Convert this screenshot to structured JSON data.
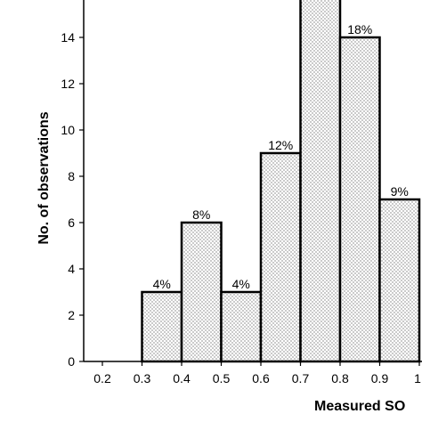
{
  "chart_data": {
    "type": "bar",
    "title": "",
    "xlabel": "Measured SO",
    "ylabel": "No. of observations",
    "x_ticks": [
      "0.2",
      "0.3",
      "0.4",
      "0.5",
      "0.6",
      "0.7",
      "0.8",
      "0.9",
      "1."
    ],
    "y_ticks": [
      0,
      2,
      4,
      6,
      8,
      10,
      12,
      14
    ],
    "ylim": [
      0,
      16
    ],
    "grid": false,
    "bars": [
      {
        "bin": [
          0.3,
          0.4
        ],
        "value": 3,
        "label": "4%"
      },
      {
        "bin": [
          0.4,
          0.5
        ],
        "value": 6,
        "label": "8%"
      },
      {
        "bin": [
          0.5,
          0.6
        ],
        "value": 3,
        "label": "4%"
      },
      {
        "bin": [
          0.6,
          0.7
        ],
        "value": 9,
        "label": "12%"
      },
      {
        "bin": [
          0.7,
          0.8
        ],
        "value": 16,
        "label": ""
      },
      {
        "bin": [
          0.8,
          0.9
        ],
        "value": 14,
        "label": "18%"
      },
      {
        "bin": [
          0.9,
          1.0
        ],
        "value": 7,
        "label": "9%"
      }
    ],
    "bar_fill": "dotted",
    "colors": {
      "bar_outline": "#000000",
      "dot": "#000000",
      "background": "#ffffff"
    }
  }
}
